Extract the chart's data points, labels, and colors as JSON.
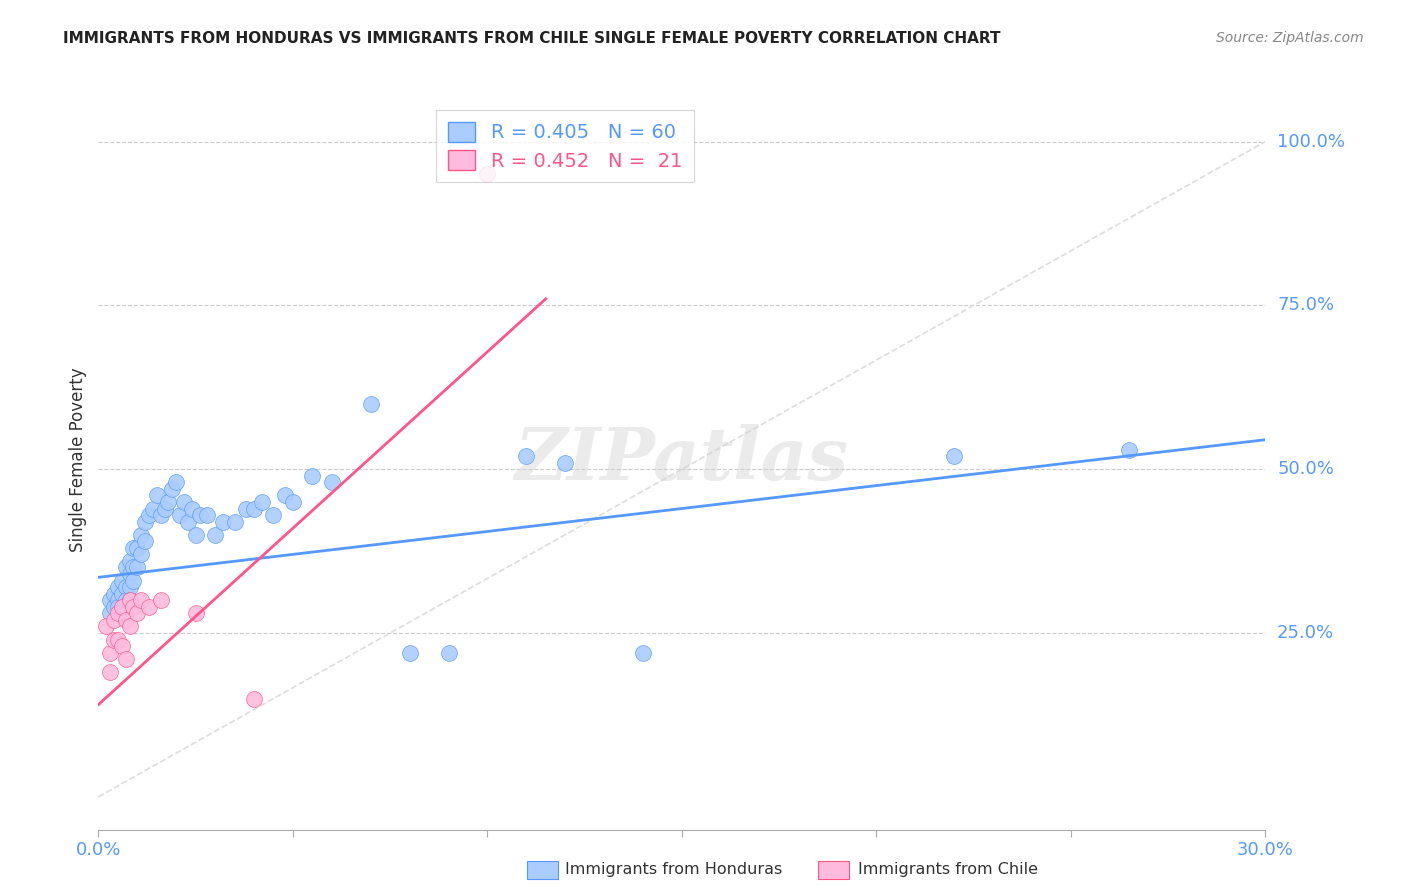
{
  "title": "IMMIGRANTS FROM HONDURAS VS IMMIGRANTS FROM CHILE SINGLE FEMALE POVERTY CORRELATION CHART",
  "source": "Source: ZipAtlas.com",
  "ylabel": "Single Female Poverty",
  "ylabel_right_ticks": [
    "100.0%",
    "75.0%",
    "50.0%",
    "25.0%"
  ],
  "ylabel_right_vals": [
    1.0,
    0.75,
    0.5,
    0.25
  ],
  "xlim": [
    0.0,
    0.3
  ],
  "ylim": [
    -0.05,
    1.08
  ],
  "legend_blue_r": "R = 0.405",
  "legend_blue_n": "N = 60",
  "legend_pink_r": "R = 0.452",
  "legend_pink_n": "N =  21",
  "legend_blue_label": "Immigrants from Honduras",
  "legend_pink_label": "Immigrants from Chile",
  "blue_color": "#aaccff",
  "pink_color": "#ffbbdd",
  "line_blue_color": "#5599ff",
  "line_pink_color": "#ff5588",
  "diagonal_color": "#dddddd",
  "watermark": "ZIPatlas",
  "blue_scatter_x": [
    0.003,
    0.003,
    0.004,
    0.004,
    0.005,
    0.005,
    0.005,
    0.006,
    0.006,
    0.006,
    0.007,
    0.007,
    0.007,
    0.008,
    0.008,
    0.008,
    0.008,
    0.009,
    0.009,
    0.009,
    0.01,
    0.01,
    0.011,
    0.011,
    0.012,
    0.012,
    0.013,
    0.014,
    0.015,
    0.016,
    0.017,
    0.018,
    0.019,
    0.02,
    0.021,
    0.022,
    0.023,
    0.024,
    0.025,
    0.026,
    0.028,
    0.03,
    0.032,
    0.035,
    0.038,
    0.04,
    0.042,
    0.045,
    0.048,
    0.05,
    0.055,
    0.06,
    0.07,
    0.08,
    0.09,
    0.11,
    0.12,
    0.14,
    0.22,
    0.265
  ],
  "blue_scatter_y": [
    0.3,
    0.28,
    0.29,
    0.31,
    0.32,
    0.3,
    0.29,
    0.33,
    0.31,
    0.28,
    0.35,
    0.32,
    0.3,
    0.36,
    0.34,
    0.32,
    0.3,
    0.38,
    0.35,
    0.33,
    0.38,
    0.35,
    0.4,
    0.37,
    0.42,
    0.39,
    0.43,
    0.44,
    0.46,
    0.43,
    0.44,
    0.45,
    0.47,
    0.48,
    0.43,
    0.45,
    0.42,
    0.44,
    0.4,
    0.43,
    0.43,
    0.4,
    0.42,
    0.42,
    0.44,
    0.44,
    0.45,
    0.43,
    0.46,
    0.45,
    0.49,
    0.48,
    0.6,
    0.22,
    0.22,
    0.52,
    0.51,
    0.22,
    0.52,
    0.53
  ],
  "pink_scatter_x": [
    0.002,
    0.003,
    0.003,
    0.004,
    0.004,
    0.005,
    0.005,
    0.006,
    0.006,
    0.007,
    0.007,
    0.008,
    0.008,
    0.009,
    0.01,
    0.011,
    0.013,
    0.016,
    0.025,
    0.04,
    0.1
  ],
  "pink_scatter_y": [
    0.26,
    0.22,
    0.19,
    0.27,
    0.24,
    0.28,
    0.24,
    0.29,
    0.23,
    0.27,
    0.21,
    0.3,
    0.26,
    0.29,
    0.28,
    0.3,
    0.29,
    0.3,
    0.28,
    0.15,
    0.95
  ],
  "blue_line_x": [
    0.0,
    0.3
  ],
  "blue_line_y": [
    0.335,
    0.545
  ],
  "pink_line_x": [
    -0.002,
    0.115
  ],
  "pink_line_y": [
    0.13,
    0.76
  ],
  "diag_line_x": [
    0.0,
    0.3
  ],
  "diag_line_y": [
    0.0,
    1.0
  ],
  "xtick_positions": [
    0.0,
    0.05,
    0.1,
    0.15,
    0.2,
    0.25,
    0.3
  ],
  "xtick_labels_show": [
    "0.0%",
    "",
    "",
    "",
    "",
    "",
    "30.0%"
  ]
}
